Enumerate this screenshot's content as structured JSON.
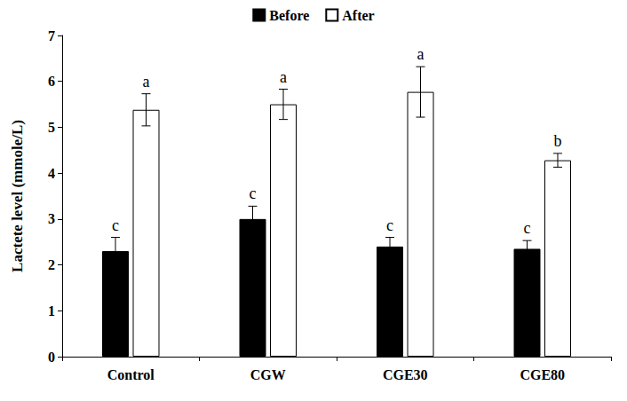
{
  "chart_data": {
    "type": "bar",
    "y_label": "Lactete level (mmole/L)",
    "categories": [
      "Control",
      "CGW",
      "CGE30",
      "CGE80"
    ],
    "series": [
      {
        "name": "Before",
        "color": "#000000",
        "values": [
          2.3,
          3.0,
          2.4,
          2.35
        ],
        "errors": [
          0.3,
          0.28,
          0.2,
          0.18
        ],
        "annotations": [
          "c",
          "c",
          "c",
          "c"
        ]
      },
      {
        "name": "After",
        "color": "#ffffff",
        "values": [
          5.38,
          5.5,
          5.77,
          4.28
        ],
        "errors": [
          0.35,
          0.33,
          0.55,
          0.15
        ],
        "annotations": [
          "a",
          "a",
          "a",
          "b"
        ]
      }
    ],
    "ylim": [
      0,
      7
    ],
    "yticks": [
      0,
      1,
      2,
      3,
      4,
      5,
      6,
      7
    ],
    "grid": false,
    "legend": "top"
  }
}
